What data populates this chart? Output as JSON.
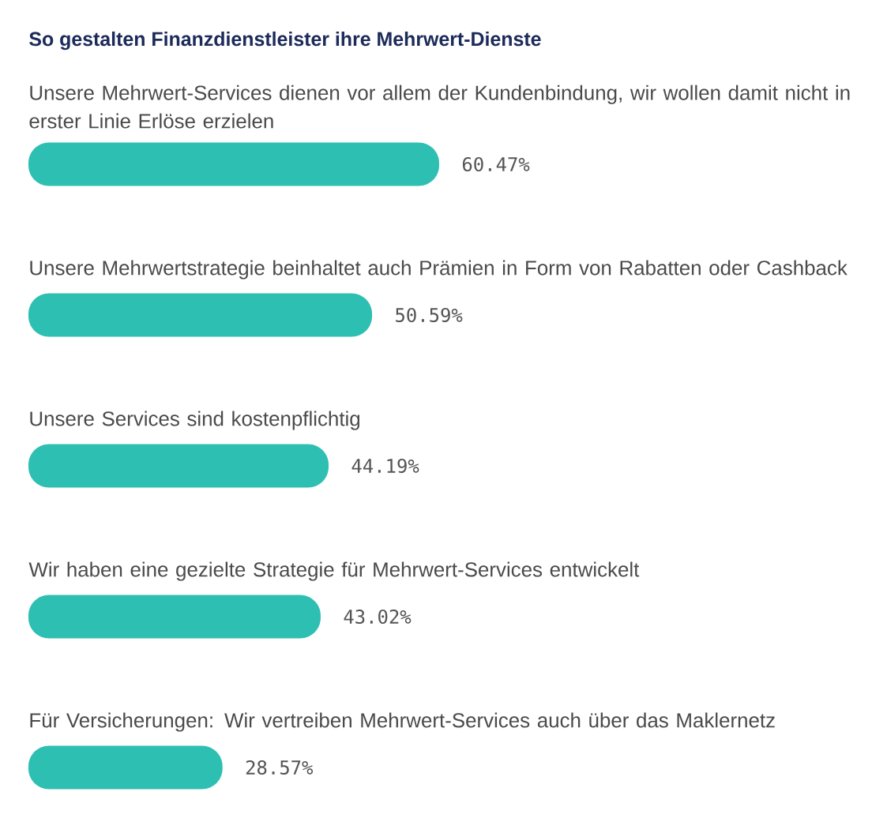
{
  "chart_data": {
    "type": "bar",
    "orientation": "horizontal",
    "title": "So gestalten Finanzdienstleister ihre Mehrwert-Dienste",
    "categories": [
      "Unsere Mehrwert-Services dienen vor allem der Kundenbindung, wir wollen damit nicht in erster Linie Erlöse erzielen",
      "Unsere Mehrwertstrategie beinhaltet auch Prämien in Form von Rabatten oder Cashback",
      "Unsere Services sind kostenpflichtig",
      "Wir haben eine gezielte Strategie für Mehrwert-Services entwickelt",
      "Für Versicherungen: Wir vertreiben Mehrwert-Services auch über das Maklernetz"
    ],
    "values": [
      60.47,
      50.59,
      44.19,
      43.02,
      28.57
    ],
    "value_labels": [
      "60.47%",
      "50.59%",
      "44.19%",
      "43.02%",
      "28.57%"
    ],
    "color": "#2ebfb3"
  }
}
